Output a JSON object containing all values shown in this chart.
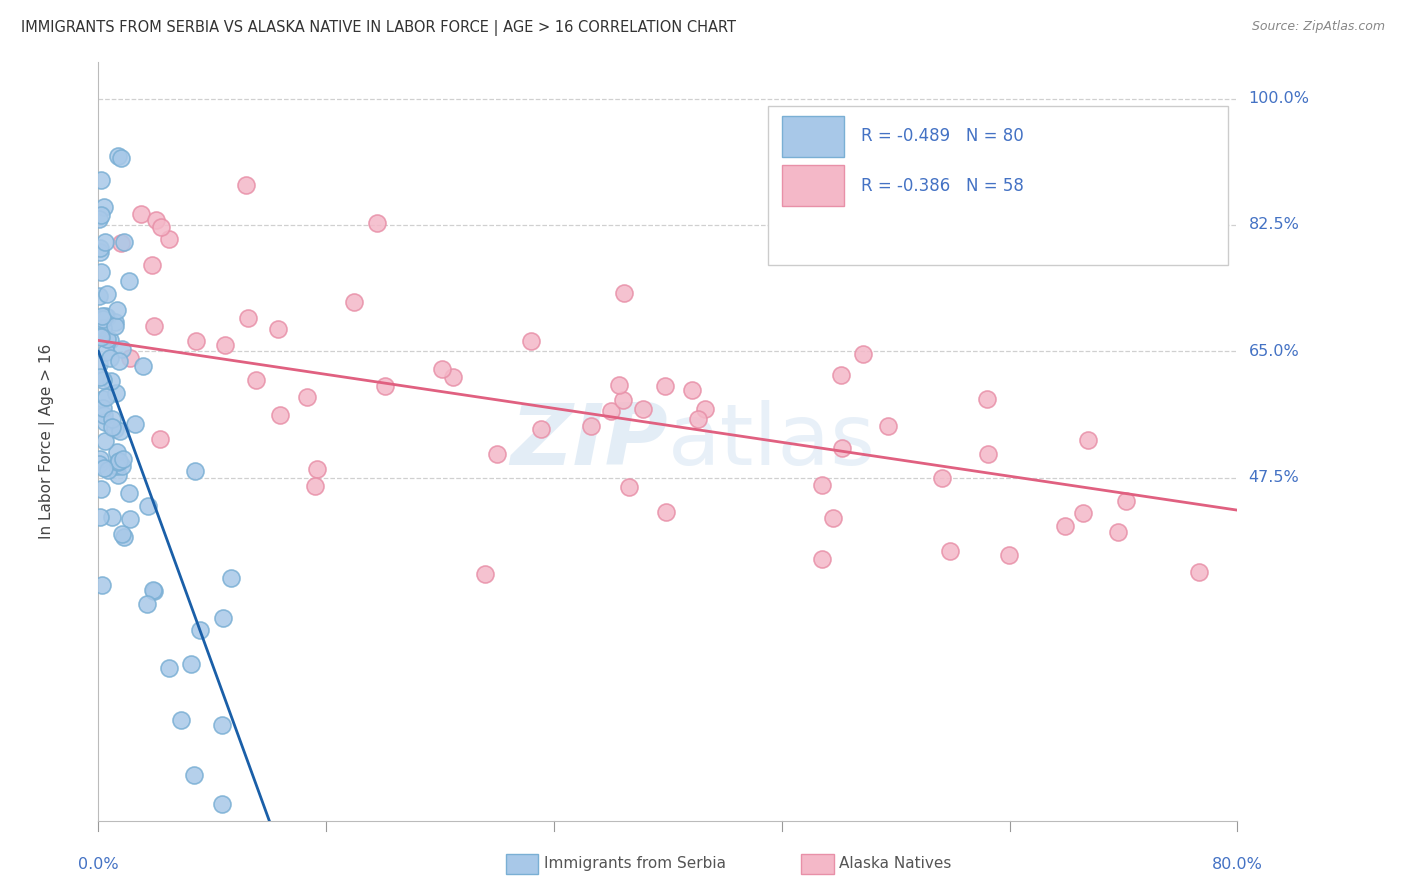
{
  "title": "IMMIGRANTS FROM SERBIA VS ALASKA NATIVE IN LABOR FORCE | AGE > 16 CORRELATION CHART",
  "source": "Source: ZipAtlas.com",
  "ylabel": "In Labor Force | Age > 16",
  "legend_label1": "Immigrants from Serbia",
  "legend_label2": "Alaska Natives",
  "R1": -0.489,
  "N1": 80,
  "R2": -0.386,
  "N2": 58,
  "color_blue_fill": "#a8c8e8",
  "color_blue_edge": "#7aafd4",
  "color_blue_line": "#1a5fa8",
  "color_pink_fill": "#f4b8c8",
  "color_pink_edge": "#e890a8",
  "color_pink_line": "#e06080",
  "watermark_color": "#cddff0",
  "ytick_vals": [
    0.0,
    47.5,
    65.0,
    82.5,
    100.0
  ],
  "ytick_labels": [
    "",
    "47.5%",
    "65.0%",
    "82.5%",
    "100.0%"
  ],
  "xmin": 0.0,
  "xmax": 80.0,
  "ymin": 0.0,
  "ymax": 105.0,
  "blue_line_x0": 0.0,
  "blue_line_x1": 12.0,
  "blue_line_y0": 65.0,
  "blue_line_y1": 0.0,
  "pink_line_x0": 0.0,
  "pink_line_x1": 80.0,
  "pink_line_y0": 66.5,
  "pink_line_y1": 43.0,
  "figwidth": 14.06,
  "figheight": 8.92
}
